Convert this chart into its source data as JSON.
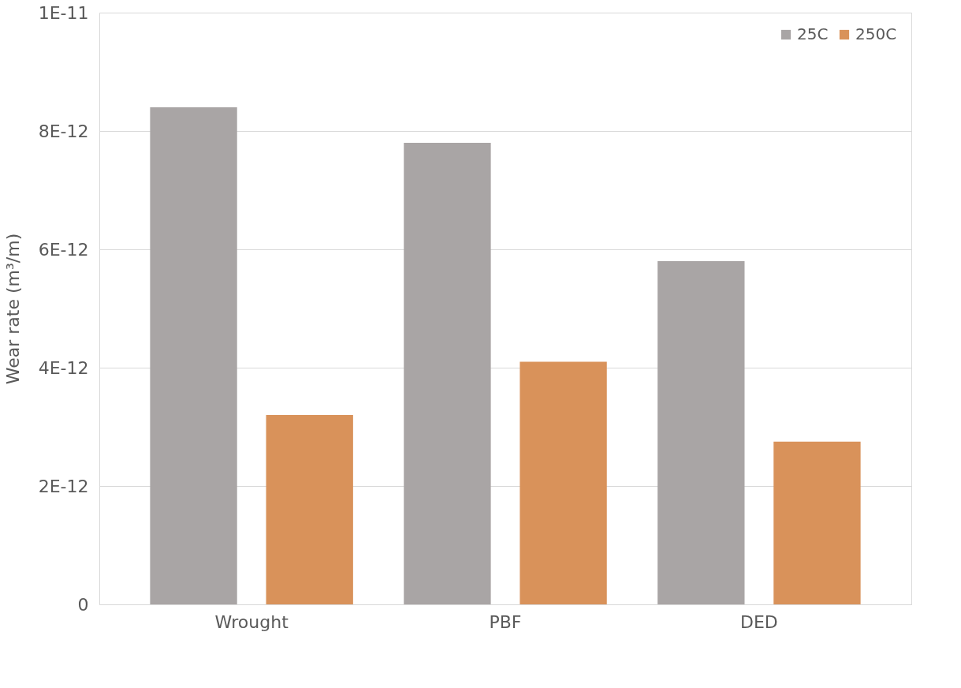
{
  "chart_data": {
    "type": "bar",
    "ylabel": "Wear rate (m³/m)",
    "categories": [
      "Wrought",
      "PBF",
      "DED"
    ],
    "series": [
      {
        "name": "25C",
        "color": "#a9a5a5",
        "values": [
          8.4e-12,
          7.8e-12,
          5.8e-12
        ]
      },
      {
        "name": "250C",
        "color": "#d9925a",
        "values": [
          3.2e-12,
          4.1e-12,
          2.75e-12
        ]
      }
    ],
    "ylim": [
      0,
      1e-11
    ],
    "yticks": [
      0,
      {
        "value": 2e-12,
        "label": "2E-12"
      },
      {
        "value": 4e-12,
        "label": "4E-12"
      },
      {
        "value": 6e-12,
        "label": "6E-12"
      },
      {
        "value": 8e-12,
        "label": "8E-12"
      },
      {
        "value": 1e-11,
        "label": "1E-11"
      }
    ],
    "grid": "y",
    "legend": "top right"
  }
}
